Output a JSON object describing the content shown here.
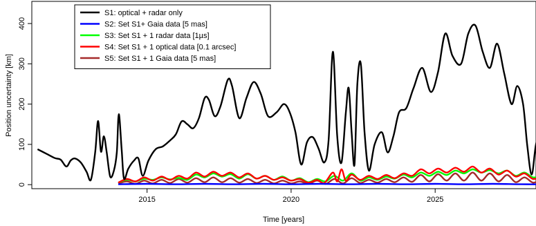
{
  "chart_data": {
    "type": "line",
    "xlabel": "Time [years]",
    "ylabel": "Position uncertainty [km]",
    "xlim": [
      2011.0,
      2028.5
    ],
    "ylim": [
      -10,
      455
    ],
    "x_ticks": [
      2015,
      2020,
      2025
    ],
    "y_ticks": [
      0,
      100,
      200,
      300,
      400
    ],
    "grid": false,
    "legend_position": "top-left",
    "series": [
      {
        "name": "S1: optical + radar only",
        "color": "#000000",
        "points": [
          [
            2011.2,
            88
          ],
          [
            2011.5,
            77
          ],
          [
            2011.8,
            66
          ],
          [
            2012.0,
            62
          ],
          [
            2012.2,
            45
          ],
          [
            2012.35,
            60
          ],
          [
            2012.5,
            65
          ],
          [
            2012.7,
            55
          ],
          [
            2012.9,
            32
          ],
          [
            2013.05,
            12
          ],
          [
            2013.2,
            80
          ],
          [
            2013.3,
            158
          ],
          [
            2013.4,
            82
          ],
          [
            2013.5,
            120
          ],
          [
            2013.6,
            80
          ],
          [
            2013.72,
            20
          ],
          [
            2013.85,
            35
          ],
          [
            2013.95,
            80
          ],
          [
            2014.02,
            175
          ],
          [
            2014.12,
            85
          ],
          [
            2014.2,
            15
          ],
          [
            2014.35,
            40
          ],
          [
            2014.55,
            60
          ],
          [
            2014.7,
            65
          ],
          [
            2014.85,
            22
          ],
          [
            2015.05,
            60
          ],
          [
            2015.3,
            88
          ],
          [
            2015.55,
            95
          ],
          [
            2015.8,
            110
          ],
          [
            2016.0,
            125
          ],
          [
            2016.2,
            157
          ],
          [
            2016.4,
            150
          ],
          [
            2016.6,
            140
          ],
          [
            2016.8,
            165
          ],
          [
            2017.0,
            215
          ],
          [
            2017.15,
            210
          ],
          [
            2017.35,
            170
          ],
          [
            2017.55,
            195
          ],
          [
            2017.8,
            260
          ],
          [
            2017.95,
            245
          ],
          [
            2018.2,
            165
          ],
          [
            2018.45,
            215
          ],
          [
            2018.7,
            255
          ],
          [
            2018.95,
            225
          ],
          [
            2019.2,
            170
          ],
          [
            2019.5,
            180
          ],
          [
            2019.75,
            200
          ],
          [
            2019.95,
            180
          ],
          [
            2020.15,
            130
          ],
          [
            2020.35,
            50
          ],
          [
            2020.55,
            105
          ],
          [
            2020.75,
            118
          ],
          [
            2020.95,
            90
          ],
          [
            2021.15,
            55
          ],
          [
            2021.3,
            110
          ],
          [
            2021.45,
            330
          ],
          [
            2021.6,
            120
          ],
          [
            2021.75,
            55
          ],
          [
            2021.9,
            180
          ],
          [
            2022.0,
            240
          ],
          [
            2022.1,
            130
          ],
          [
            2022.2,
            50
          ],
          [
            2022.3,
            250
          ],
          [
            2022.42,
            300
          ],
          [
            2022.55,
            130
          ],
          [
            2022.7,
            35
          ],
          [
            2022.9,
            100
          ],
          [
            2023.15,
            130
          ],
          [
            2023.35,
            80
          ],
          [
            2023.55,
            120
          ],
          [
            2023.75,
            180
          ],
          [
            2024.0,
            190
          ],
          [
            2024.25,
            240
          ],
          [
            2024.55,
            290
          ],
          [
            2024.85,
            230
          ],
          [
            2025.1,
            280
          ],
          [
            2025.35,
            375
          ],
          [
            2025.6,
            320
          ],
          [
            2025.9,
            300
          ],
          [
            2026.15,
            375
          ],
          [
            2026.4,
            395
          ],
          [
            2026.65,
            330
          ],
          [
            2026.9,
            290
          ],
          [
            2027.15,
            350
          ],
          [
            2027.4,
            275
          ],
          [
            2027.65,
            200
          ],
          [
            2027.85,
            245
          ],
          [
            2028.05,
            200
          ],
          [
            2028.2,
            95
          ],
          [
            2028.35,
            25
          ],
          [
            2028.5,
            100
          ],
          [
            2028.7,
            145
          ],
          [
            2028.85,
            100
          ],
          [
            2029.0,
            30
          ]
        ]
      },
      {
        "name": "S2: Set S1+ Gaia data [5 mas]",
        "color": "#0000ff",
        "points": [
          [
            2014.0,
            1
          ],
          [
            2015.0,
            2
          ],
          [
            2016.0,
            1
          ],
          [
            2017.0,
            2
          ],
          [
            2018.0,
            1
          ],
          [
            2019.0,
            2
          ],
          [
            2020.0,
            1
          ],
          [
            2021.0,
            2
          ],
          [
            2022.0,
            1
          ],
          [
            2023.0,
            2
          ],
          [
            2024.0,
            1
          ],
          [
            2025.0,
            2
          ],
          [
            2026.0,
            1
          ],
          [
            2027.0,
            2
          ],
          [
            2028.0,
            1
          ],
          [
            2029.0,
            1
          ]
        ]
      },
      {
        "name": "S3: Set S1 + 1 radar data [1µs]",
        "color": "#00ff00",
        "points": [
          [
            2014.0,
            5
          ],
          [
            2014.3,
            12
          ],
          [
            2014.6,
            8
          ],
          [
            2014.9,
            15
          ],
          [
            2015.2,
            12
          ],
          [
            2015.5,
            18
          ],
          [
            2015.8,
            13
          ],
          [
            2016.1,
            17
          ],
          [
            2016.4,
            12
          ],
          [
            2016.7,
            25
          ],
          [
            2017.0,
            18
          ],
          [
            2017.3,
            28
          ],
          [
            2017.6,
            20
          ],
          [
            2017.9,
            26
          ],
          [
            2018.2,
            15
          ],
          [
            2018.5,
            26
          ],
          [
            2018.8,
            15
          ],
          [
            2019.1,
            22
          ],
          [
            2019.4,
            12
          ],
          [
            2019.7,
            20
          ],
          [
            2020.0,
            10
          ],
          [
            2020.3,
            16
          ],
          [
            2020.6,
            6
          ],
          [
            2020.9,
            14
          ],
          [
            2021.2,
            8
          ],
          [
            2021.5,
            22
          ],
          [
            2021.8,
            10
          ],
          [
            2022.1,
            28
          ],
          [
            2022.4,
            10
          ],
          [
            2022.7,
            18
          ],
          [
            2023.0,
            12
          ],
          [
            2023.3,
            20
          ],
          [
            2023.6,
            15
          ],
          [
            2023.9,
            25
          ],
          [
            2024.2,
            18
          ],
          [
            2024.5,
            30
          ],
          [
            2024.8,
            22
          ],
          [
            2025.1,
            32
          ],
          [
            2025.4,
            24
          ],
          [
            2025.7,
            35
          ],
          [
            2026.0,
            28
          ],
          [
            2026.3,
            38
          ],
          [
            2026.6,
            30
          ],
          [
            2026.9,
            36
          ],
          [
            2027.2,
            28
          ],
          [
            2027.5,
            35
          ],
          [
            2027.8,
            22
          ],
          [
            2028.1,
            30
          ],
          [
            2028.4,
            18
          ],
          [
            2028.7,
            22
          ],
          [
            2029.0,
            15
          ]
        ]
      },
      {
        "name": "S4: Set S1 + 1 optical data [0.1 arcsec]",
        "color": "#ff0000",
        "points": [
          [
            2014.0,
            5
          ],
          [
            2014.3,
            14
          ],
          [
            2014.6,
            8
          ],
          [
            2014.9,
            18
          ],
          [
            2015.2,
            10
          ],
          [
            2015.5,
            20
          ],
          [
            2015.8,
            12
          ],
          [
            2016.1,
            22
          ],
          [
            2016.4,
            15
          ],
          [
            2016.7,
            30
          ],
          [
            2017.0,
            20
          ],
          [
            2017.3,
            32
          ],
          [
            2017.6,
            22
          ],
          [
            2017.9,
            30
          ],
          [
            2018.2,
            18
          ],
          [
            2018.5,
            28
          ],
          [
            2018.8,
            15
          ],
          [
            2019.1,
            22
          ],
          [
            2019.4,
            12
          ],
          [
            2019.7,
            18
          ],
          [
            2020.0,
            10
          ],
          [
            2020.3,
            14
          ],
          [
            2020.6,
            5
          ],
          [
            2020.9,
            12
          ],
          [
            2021.15,
            4
          ],
          [
            2021.45,
            30
          ],
          [
            2021.6,
            8
          ],
          [
            2021.75,
            38
          ],
          [
            2021.9,
            10
          ],
          [
            2022.1,
            25
          ],
          [
            2022.4,
            12
          ],
          [
            2022.7,
            22
          ],
          [
            2023.0,
            14
          ],
          [
            2023.3,
            24
          ],
          [
            2023.6,
            16
          ],
          [
            2023.9,
            28
          ],
          [
            2024.2,
            22
          ],
          [
            2024.5,
            38
          ],
          [
            2024.8,
            28
          ],
          [
            2025.1,
            40
          ],
          [
            2025.4,
            30
          ],
          [
            2025.7,
            42
          ],
          [
            2026.0,
            32
          ],
          [
            2026.3,
            45
          ],
          [
            2026.6,
            30
          ],
          [
            2026.9,
            40
          ],
          [
            2027.2,
            25
          ],
          [
            2027.5,
            35
          ],
          [
            2027.8,
            20
          ],
          [
            2028.1,
            28
          ],
          [
            2028.4,
            14
          ],
          [
            2028.7,
            20
          ],
          [
            2029.0,
            10
          ]
        ]
      },
      {
        "name": "S5: Set S1 + 1 Gaia data [5 mas]",
        "color": "#a52a2a",
        "points": [
          [
            2014.0,
            3
          ],
          [
            2014.3,
            8
          ],
          [
            2014.6,
            2
          ],
          [
            2014.9,
            10
          ],
          [
            2015.2,
            3
          ],
          [
            2015.5,
            12
          ],
          [
            2015.8,
            4
          ],
          [
            2016.1,
            14
          ],
          [
            2016.4,
            5
          ],
          [
            2016.7,
            16
          ],
          [
            2017.0,
            6
          ],
          [
            2017.3,
            18
          ],
          [
            2017.6,
            6
          ],
          [
            2017.9,
            16
          ],
          [
            2018.2,
            5
          ],
          [
            2018.5,
            14
          ],
          [
            2018.8,
            4
          ],
          [
            2019.1,
            12
          ],
          [
            2019.4,
            3
          ],
          [
            2019.7,
            10
          ],
          [
            2020.0,
            3
          ],
          [
            2020.3,
            8
          ],
          [
            2020.6,
            2
          ],
          [
            2020.9,
            10
          ],
          [
            2021.2,
            2
          ],
          [
            2021.5,
            14
          ],
          [
            2021.8,
            3
          ],
          [
            2022.1,
            16
          ],
          [
            2022.4,
            4
          ],
          [
            2022.7,
            12
          ],
          [
            2023.0,
            5
          ],
          [
            2023.3,
            14
          ],
          [
            2023.6,
            6
          ],
          [
            2023.9,
            18
          ],
          [
            2024.2,
            7
          ],
          [
            2024.5,
            24
          ],
          [
            2024.8,
            8
          ],
          [
            2025.1,
            26
          ],
          [
            2025.4,
            10
          ],
          [
            2025.7,
            28
          ],
          [
            2026.0,
            10
          ],
          [
            2026.3,
            30
          ],
          [
            2026.6,
            10
          ],
          [
            2026.9,
            28
          ],
          [
            2027.2,
            8
          ],
          [
            2027.5,
            24
          ],
          [
            2027.8,
            6
          ],
          [
            2028.1,
            18
          ],
          [
            2028.4,
            5
          ],
          [
            2028.7,
            12
          ],
          [
            2029.0,
            4
          ]
        ]
      }
    ]
  }
}
